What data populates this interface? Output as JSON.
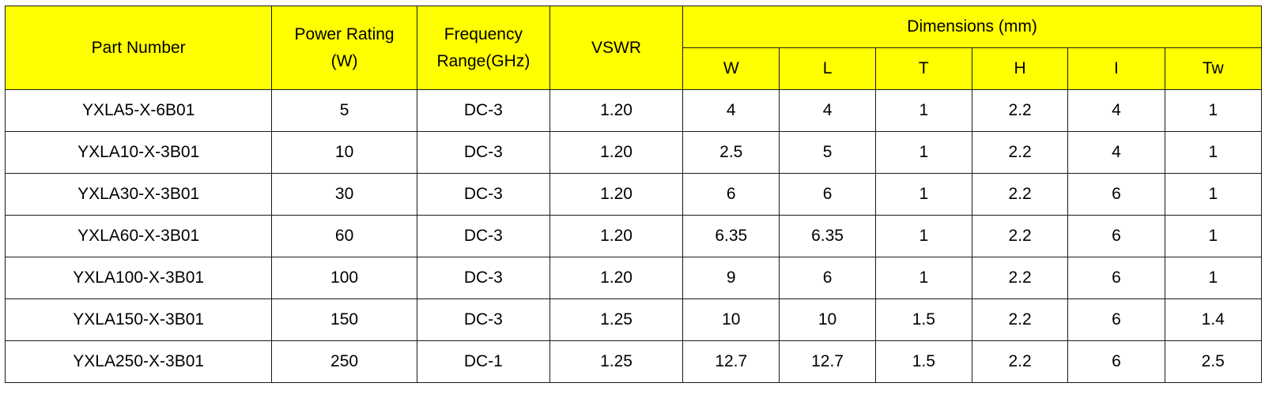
{
  "table": {
    "header": {
      "part_number": "Part Number",
      "power_rating_line1": "Power Rating",
      "power_rating_line2": "(W)",
      "frequency_line1": "Frequency",
      "frequency_line2": "Range(GHz)",
      "vswr": "VSWR",
      "dimensions": "Dimensions (mm)",
      "dim_columns": [
        "W",
        "L",
        "T",
        "H",
        "I",
        "Tw"
      ]
    },
    "colors": {
      "header_background": "#ffff00",
      "border": "#1a1a1a"
    },
    "rows": [
      {
        "part": "YXLA5-X-6B01",
        "power": "5",
        "freq": "DC-3",
        "vswr": "1.20",
        "w": "4",
        "l": "4",
        "t": "1",
        "h": "2.2",
        "i": "4",
        "tw": "1"
      },
      {
        "part": "YXLA10-X-3B01",
        "power": "10",
        "freq": "DC-3",
        "vswr": "1.20",
        "w": "2.5",
        "l": "5",
        "t": "1",
        "h": "2.2",
        "i": "4",
        "tw": "1"
      },
      {
        "part": "YXLA30-X-3B01",
        "power": "30",
        "freq": "DC-3",
        "vswr": "1.20",
        "w": "6",
        "l": "6",
        "t": "1",
        "h": "2.2",
        "i": "6",
        "tw": "1"
      },
      {
        "part": "YXLA60-X-3B01",
        "power": "60",
        "freq": "DC-3",
        "vswr": "1.20",
        "w": "6.35",
        "l": "6.35",
        "t": "1",
        "h": "2.2",
        "i": "6",
        "tw": "1"
      },
      {
        "part": "YXLA100-X-3B01",
        "power": "100",
        "freq": "DC-3",
        "vswr": "1.20",
        "w": "9",
        "l": "6",
        "t": "1",
        "h": "2.2",
        "i": "6",
        "tw": "1"
      },
      {
        "part": "YXLA150-X-3B01",
        "power": "150",
        "freq": "DC-3",
        "vswr": "1.25",
        "w": "10",
        "l": "10",
        "t": "1.5",
        "h": "2.2",
        "i": "6",
        "tw": "1.4"
      },
      {
        "part": "YXLA250-X-3B01",
        "power": "250",
        "freq": "DC-1",
        "vswr": "1.25",
        "w": "12.7",
        "l": "12.7",
        "t": "1.5",
        "h": "2.2",
        "i": "6",
        "tw": "2.5"
      }
    ]
  }
}
